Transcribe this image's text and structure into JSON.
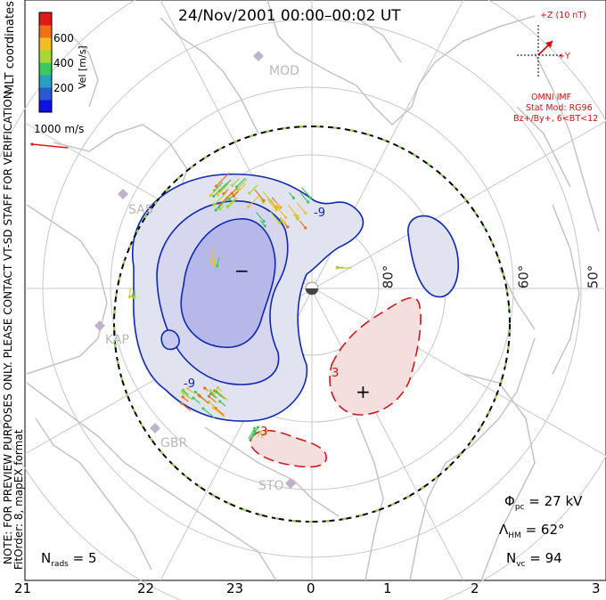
{
  "title": "24/Nov/2001 00:00–00:02 UT",
  "colorbar": {
    "unit_label": "Vel [m/s]",
    "ticks": [
      "600",
      "400",
      "200"
    ],
    "colors": [
      "#1010e0",
      "#2a5ad0",
      "#2aa0c0",
      "#40c860",
      "#a8d838",
      "#f0c020",
      "#f07018",
      "#e01818"
    ]
  },
  "scale_vector": {
    "label": "1000 m/s",
    "color": "#e01818"
  },
  "side_text": {
    "mlt": "MLT coordinates",
    "note_line1": "NOTE: FOR PREVIEW PURPOSES ONLY. PLEASE CONTACT VT-SD STAFF FOR VERIFICATION.",
    "note_line2": "FitOrder: 8, mapEX format"
  },
  "imf": {
    "z_label": "+Z (10 nT)",
    "y_label": "+Y",
    "source": "OMNI IMF",
    "stat_mod": "Stat Mod: RG96",
    "condition": "Bz+/By+, 6<BT<12",
    "color": "#d01010"
  },
  "latitude_labels": [
    "80°",
    "60°",
    "50°"
  ],
  "stations": [
    "MOD",
    "SAS",
    "KAP",
    "GBR",
    "STO"
  ],
  "contour_labels": [
    "-9",
    "-9",
    "3",
    "3"
  ],
  "potential_signs": {
    "minimum": "−",
    "maximum": "+"
  },
  "stats": {
    "phi_pc_symbol": "Φ",
    "phi_pc_sub": "pc",
    "phi_pc_value": "= 27 kV",
    "lambda_hm_symbol": "Λ",
    "lambda_hm_sub": "HM",
    "lambda_hm_value": "= 62°",
    "n_vc_symbol": "N",
    "n_vc_sub": "vc",
    "n_vc_value": "= 94",
    "n_rads_symbol": "N",
    "n_rads_sub": "rads",
    "n_rads_value": "= 5"
  },
  "mlt_axis": [
    "21",
    "22",
    "23",
    "0",
    "1",
    "2",
    "3"
  ],
  "colors": {
    "negative_contour": "#1028b8",
    "positive_contour": "#d01818",
    "negative_fill_outer": "#e2e3f1",
    "negative_fill_inner": "#b7b8ea",
    "positive_fill": "#f4dede",
    "coastline": "#c4c4c4",
    "grid": "#c8c8c8",
    "hm_boundary": "#000000",
    "hm_boundary_dash": "#8ce050"
  }
}
